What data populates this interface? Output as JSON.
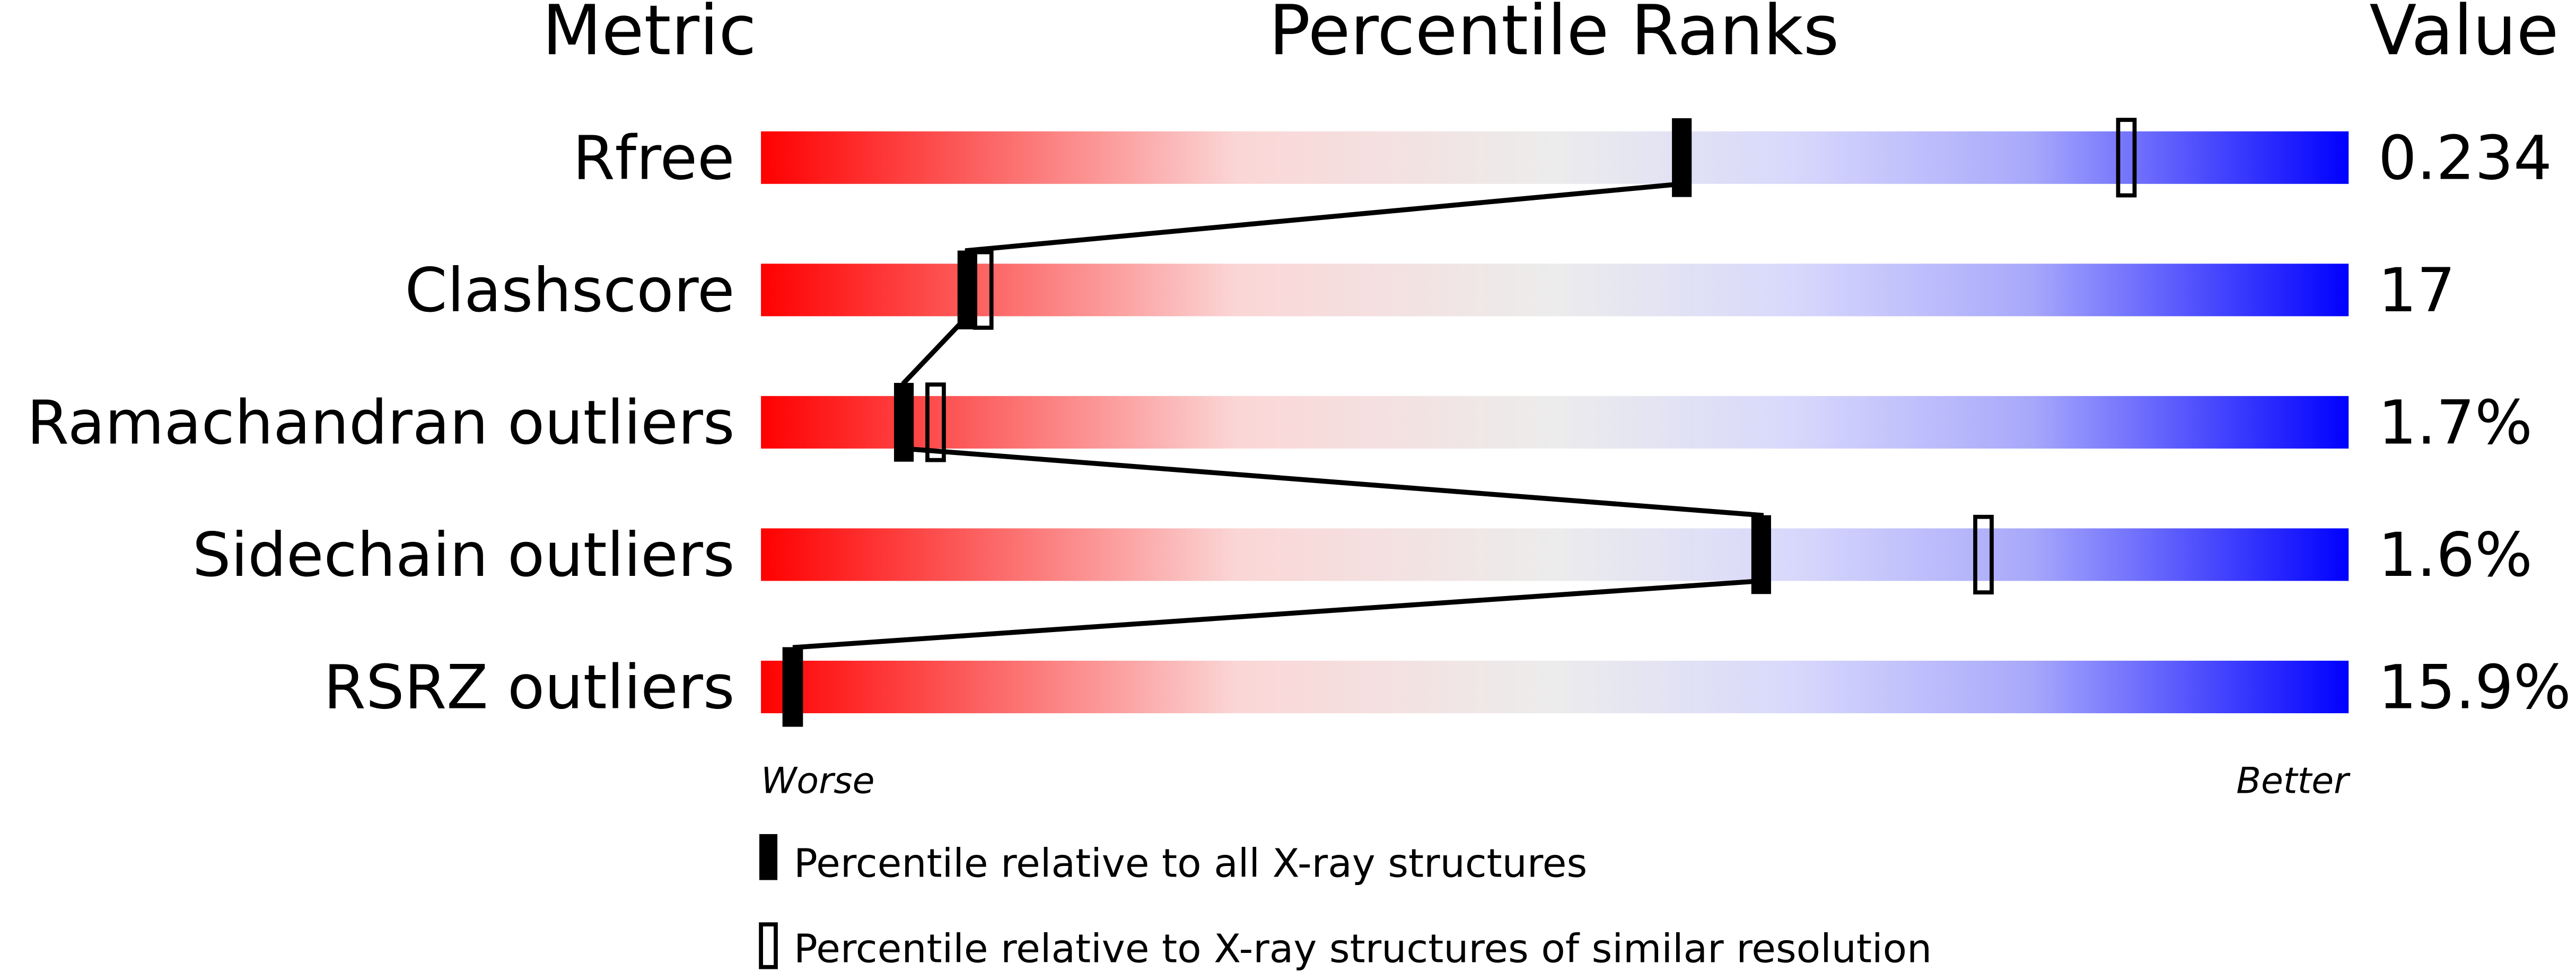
{
  "chart_data": {
    "type": "percentile-slider",
    "headers": {
      "metric": "Metric",
      "ranks": "Percentile Ranks",
      "value": "Value"
    },
    "axis": {
      "left": "Worse",
      "right": "Better",
      "range": [
        0,
        100
      ]
    },
    "metrics": [
      {
        "name": "Rfree",
        "value": "0.234",
        "percentile_all": 58,
        "percentile_similar": 86
      },
      {
        "name": "Clashscore",
        "value": "17",
        "percentile_all": 13,
        "percentile_similar": 14
      },
      {
        "name": "Ramachandran outliers",
        "value": "1.7%",
        "percentile_all": 9,
        "percentile_similar": 11
      },
      {
        "name": "Sidechain outliers",
        "value": "1.6%",
        "percentile_all": 63,
        "percentile_similar": 77
      },
      {
        "name": "RSRZ outliers",
        "value": "15.9%",
        "percentile_all": 2,
        "percentile_similar": 2
      }
    ],
    "legend": [
      {
        "marker": "filled",
        "label": "Percentile relative to all X-ray structures"
      },
      {
        "marker": "open",
        "label": "Percentile relative to X-ray structures of similar resolution"
      }
    ],
    "colors": {
      "worse": "#ff0000",
      "middle": "#eeeeee",
      "better": "#0000ff"
    }
  }
}
